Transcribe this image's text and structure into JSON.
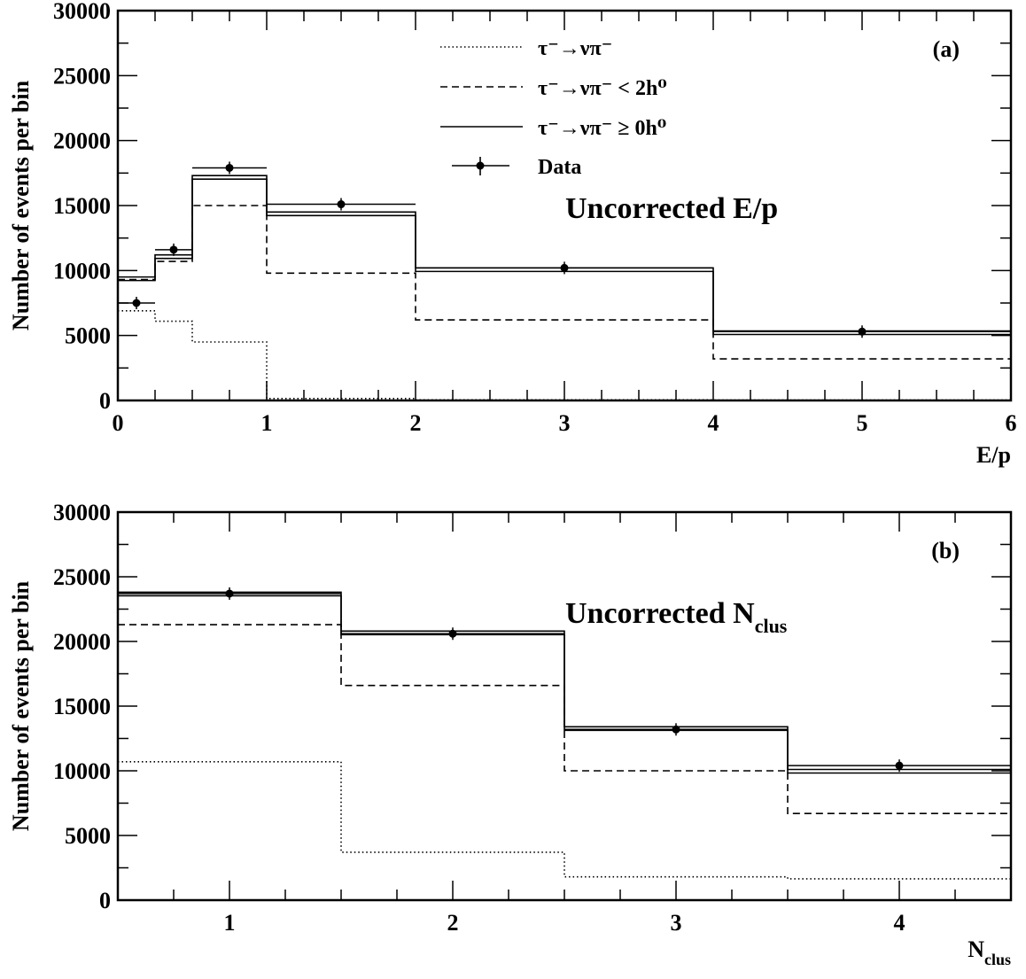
{
  "legend": {
    "entries": [
      {
        "label": "τ⁻→νπ⁻",
        "style": "dotted"
      },
      {
        "label": "τ⁻→νπ⁻ < 2h⁰",
        "style": "dashed"
      },
      {
        "label": "τ⁻→νπ⁻ ≥ 0h⁰",
        "style": "solid"
      },
      {
        "label": "Data",
        "style": "points"
      }
    ]
  },
  "chart_data": [
    {
      "type": "line",
      "panel_tag": "(a)",
      "annotation": "Uncorrected E/p",
      "xlabel": "E/p",
      "ylabel": "Number of events per bin",
      "xlim": [
        0,
        6
      ],
      "ylim": [
        0,
        30000
      ],
      "xticks": [
        0,
        1,
        2,
        3,
        4,
        5,
        6
      ],
      "yticks": [
        0,
        5000,
        10000,
        15000,
        20000,
        25000,
        30000
      ],
      "bin_edges": [
        0,
        0.25,
        0.5,
        1,
        2,
        4,
        6
      ],
      "series": [
        {
          "name": "τ⁻→νπ⁻",
          "style": "dotted",
          "values": [
            6900,
            6100,
            4500,
            150,
            50,
            30
          ]
        },
        {
          "name": "τ⁻→νπ⁻ < 2h⁰",
          "style": "dashed",
          "values": [
            9300,
            10700,
            15000,
            9800,
            6200,
            3200
          ]
        },
        {
          "name": "τ⁻→νπ⁻ ≥ 0h⁰",
          "style": "solid",
          "band": true,
          "values": [
            9400,
            11100,
            17200,
            14400,
            10100,
            5250
          ]
        },
        {
          "name": "Data",
          "style": "points",
          "x": [
            0.125,
            0.375,
            0.75,
            1.5,
            3.0,
            5.0
          ],
          "values": [
            7500,
            11600,
            17900,
            15100,
            10200,
            5300
          ]
        }
      ]
    },
    {
      "type": "line",
      "panel_tag": "(b)",
      "annotation": "Uncorrected N",
      "annotation_sub": "clus",
      "xlabel": "N",
      "xlabel_sub": "clus",
      "ylabel": "Number of events per bin",
      "xlim": [
        0.5,
        4.5
      ],
      "ylim": [
        0,
        30000
      ],
      "xticks": [
        1,
        2,
        3,
        4
      ],
      "yticks": [
        0,
        5000,
        10000,
        15000,
        20000,
        25000,
        30000
      ],
      "bin_edges": [
        0.5,
        1.5,
        2.5,
        3.5,
        4.5
      ],
      "series": [
        {
          "name": "τ⁻→νπ⁻",
          "style": "dotted",
          "values": [
            10700,
            3700,
            1800,
            1650
          ]
        },
        {
          "name": "τ⁻→νπ⁻ < 2h⁰",
          "style": "dashed",
          "values": [
            21300,
            16600,
            10000,
            6700
          ]
        },
        {
          "name": "τ⁻→νπ⁻ ≥ 0h⁰",
          "style": "solid",
          "band": true,
          "values": [
            23700,
            20700,
            13300,
            10000
          ]
        },
        {
          "name": "Data",
          "style": "points",
          "x": [
            1,
            2,
            3,
            4
          ],
          "values": [
            23700,
            20600,
            13200,
            10400
          ]
        }
      ]
    }
  ]
}
